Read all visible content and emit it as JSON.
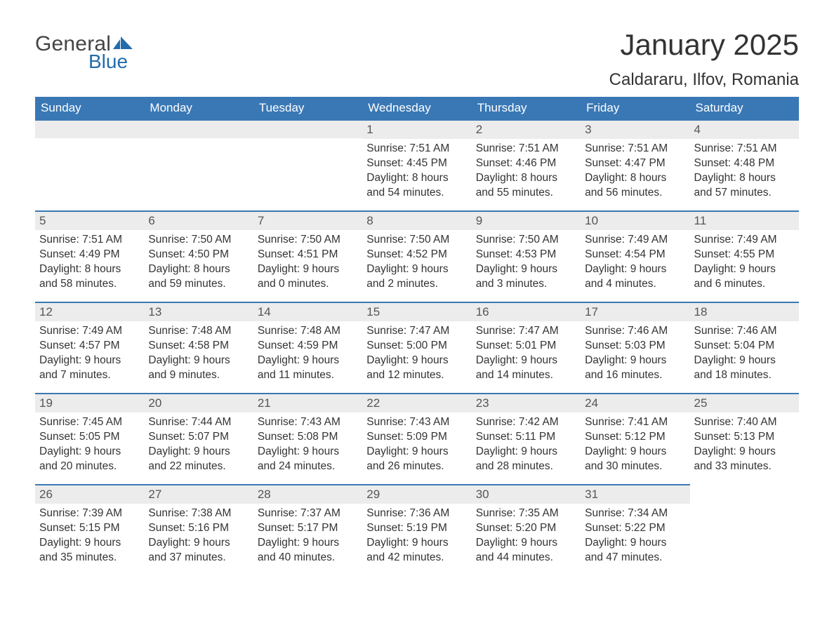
{
  "logo": {
    "word1": "General",
    "word2": "Blue"
  },
  "title": "January 2025",
  "location": "Caldararu, Ilfov, Romania",
  "colors": {
    "header_bg": "#3a78b5",
    "header_text": "#ffffff",
    "daynum_bg": "#ececec",
    "border_top": "#3a78b5",
    "text": "#333333",
    "logo_gray": "#444444",
    "logo_blue": "#236cab"
  },
  "weekdays": [
    "Sunday",
    "Monday",
    "Tuesday",
    "Wednesday",
    "Thursday",
    "Friday",
    "Saturday"
  ],
  "weeks": [
    [
      {
        "day": "",
        "sunrise": "",
        "sunset": "",
        "d1": "",
        "d2": ""
      },
      {
        "day": "",
        "sunrise": "",
        "sunset": "",
        "d1": "",
        "d2": ""
      },
      {
        "day": "",
        "sunrise": "",
        "sunset": "",
        "d1": "",
        "d2": ""
      },
      {
        "day": "1",
        "sunrise": "Sunrise: 7:51 AM",
        "sunset": "Sunset: 4:45 PM",
        "d1": "Daylight: 8 hours",
        "d2": "and 54 minutes."
      },
      {
        "day": "2",
        "sunrise": "Sunrise: 7:51 AM",
        "sunset": "Sunset: 4:46 PM",
        "d1": "Daylight: 8 hours",
        "d2": "and 55 minutes."
      },
      {
        "day": "3",
        "sunrise": "Sunrise: 7:51 AM",
        "sunset": "Sunset: 4:47 PM",
        "d1": "Daylight: 8 hours",
        "d2": "and 56 minutes."
      },
      {
        "day": "4",
        "sunrise": "Sunrise: 7:51 AM",
        "sunset": "Sunset: 4:48 PM",
        "d1": "Daylight: 8 hours",
        "d2": "and 57 minutes."
      }
    ],
    [
      {
        "day": "5",
        "sunrise": "Sunrise: 7:51 AM",
        "sunset": "Sunset: 4:49 PM",
        "d1": "Daylight: 8 hours",
        "d2": "and 58 minutes."
      },
      {
        "day": "6",
        "sunrise": "Sunrise: 7:50 AM",
        "sunset": "Sunset: 4:50 PM",
        "d1": "Daylight: 8 hours",
        "d2": "and 59 minutes."
      },
      {
        "day": "7",
        "sunrise": "Sunrise: 7:50 AM",
        "sunset": "Sunset: 4:51 PM",
        "d1": "Daylight: 9 hours",
        "d2": "and 0 minutes."
      },
      {
        "day": "8",
        "sunrise": "Sunrise: 7:50 AM",
        "sunset": "Sunset: 4:52 PM",
        "d1": "Daylight: 9 hours",
        "d2": "and 2 minutes."
      },
      {
        "day": "9",
        "sunrise": "Sunrise: 7:50 AM",
        "sunset": "Sunset: 4:53 PM",
        "d1": "Daylight: 9 hours",
        "d2": "and 3 minutes."
      },
      {
        "day": "10",
        "sunrise": "Sunrise: 7:49 AM",
        "sunset": "Sunset: 4:54 PM",
        "d1": "Daylight: 9 hours",
        "d2": "and 4 minutes."
      },
      {
        "day": "11",
        "sunrise": "Sunrise: 7:49 AM",
        "sunset": "Sunset: 4:55 PM",
        "d1": "Daylight: 9 hours",
        "d2": "and 6 minutes."
      }
    ],
    [
      {
        "day": "12",
        "sunrise": "Sunrise: 7:49 AM",
        "sunset": "Sunset: 4:57 PM",
        "d1": "Daylight: 9 hours",
        "d2": "and 7 minutes."
      },
      {
        "day": "13",
        "sunrise": "Sunrise: 7:48 AM",
        "sunset": "Sunset: 4:58 PM",
        "d1": "Daylight: 9 hours",
        "d2": "and 9 minutes."
      },
      {
        "day": "14",
        "sunrise": "Sunrise: 7:48 AM",
        "sunset": "Sunset: 4:59 PM",
        "d1": "Daylight: 9 hours",
        "d2": "and 11 minutes."
      },
      {
        "day": "15",
        "sunrise": "Sunrise: 7:47 AM",
        "sunset": "Sunset: 5:00 PM",
        "d1": "Daylight: 9 hours",
        "d2": "and 12 minutes."
      },
      {
        "day": "16",
        "sunrise": "Sunrise: 7:47 AM",
        "sunset": "Sunset: 5:01 PM",
        "d1": "Daylight: 9 hours",
        "d2": "and 14 minutes."
      },
      {
        "day": "17",
        "sunrise": "Sunrise: 7:46 AM",
        "sunset": "Sunset: 5:03 PM",
        "d1": "Daylight: 9 hours",
        "d2": "and 16 minutes."
      },
      {
        "day": "18",
        "sunrise": "Sunrise: 7:46 AM",
        "sunset": "Sunset: 5:04 PM",
        "d1": "Daylight: 9 hours",
        "d2": "and 18 minutes."
      }
    ],
    [
      {
        "day": "19",
        "sunrise": "Sunrise: 7:45 AM",
        "sunset": "Sunset: 5:05 PM",
        "d1": "Daylight: 9 hours",
        "d2": "and 20 minutes."
      },
      {
        "day": "20",
        "sunrise": "Sunrise: 7:44 AM",
        "sunset": "Sunset: 5:07 PM",
        "d1": "Daylight: 9 hours",
        "d2": "and 22 minutes."
      },
      {
        "day": "21",
        "sunrise": "Sunrise: 7:43 AM",
        "sunset": "Sunset: 5:08 PM",
        "d1": "Daylight: 9 hours",
        "d2": "and 24 minutes."
      },
      {
        "day": "22",
        "sunrise": "Sunrise: 7:43 AM",
        "sunset": "Sunset: 5:09 PM",
        "d1": "Daylight: 9 hours",
        "d2": "and 26 minutes."
      },
      {
        "day": "23",
        "sunrise": "Sunrise: 7:42 AM",
        "sunset": "Sunset: 5:11 PM",
        "d1": "Daylight: 9 hours",
        "d2": "and 28 minutes."
      },
      {
        "day": "24",
        "sunrise": "Sunrise: 7:41 AM",
        "sunset": "Sunset: 5:12 PM",
        "d1": "Daylight: 9 hours",
        "d2": "and 30 minutes."
      },
      {
        "day": "25",
        "sunrise": "Sunrise: 7:40 AM",
        "sunset": "Sunset: 5:13 PM",
        "d1": "Daylight: 9 hours",
        "d2": "and 33 minutes."
      }
    ],
    [
      {
        "day": "26",
        "sunrise": "Sunrise: 7:39 AM",
        "sunset": "Sunset: 5:15 PM",
        "d1": "Daylight: 9 hours",
        "d2": "and 35 minutes."
      },
      {
        "day": "27",
        "sunrise": "Sunrise: 7:38 AM",
        "sunset": "Sunset: 5:16 PM",
        "d1": "Daylight: 9 hours",
        "d2": "and 37 minutes."
      },
      {
        "day": "28",
        "sunrise": "Sunrise: 7:37 AM",
        "sunset": "Sunset: 5:17 PM",
        "d1": "Daylight: 9 hours",
        "d2": "and 40 minutes."
      },
      {
        "day": "29",
        "sunrise": "Sunrise: 7:36 AM",
        "sunset": "Sunset: 5:19 PM",
        "d1": "Daylight: 9 hours",
        "d2": "and 42 minutes."
      },
      {
        "day": "30",
        "sunrise": "Sunrise: 7:35 AM",
        "sunset": "Sunset: 5:20 PM",
        "d1": "Daylight: 9 hours",
        "d2": "and 44 minutes."
      },
      {
        "day": "31",
        "sunrise": "Sunrise: 7:34 AM",
        "sunset": "Sunset: 5:22 PM",
        "d1": "Daylight: 9 hours",
        "d2": "and 47 minutes."
      },
      {
        "day": "",
        "sunrise": "",
        "sunset": "",
        "d1": "",
        "d2": ""
      }
    ]
  ]
}
